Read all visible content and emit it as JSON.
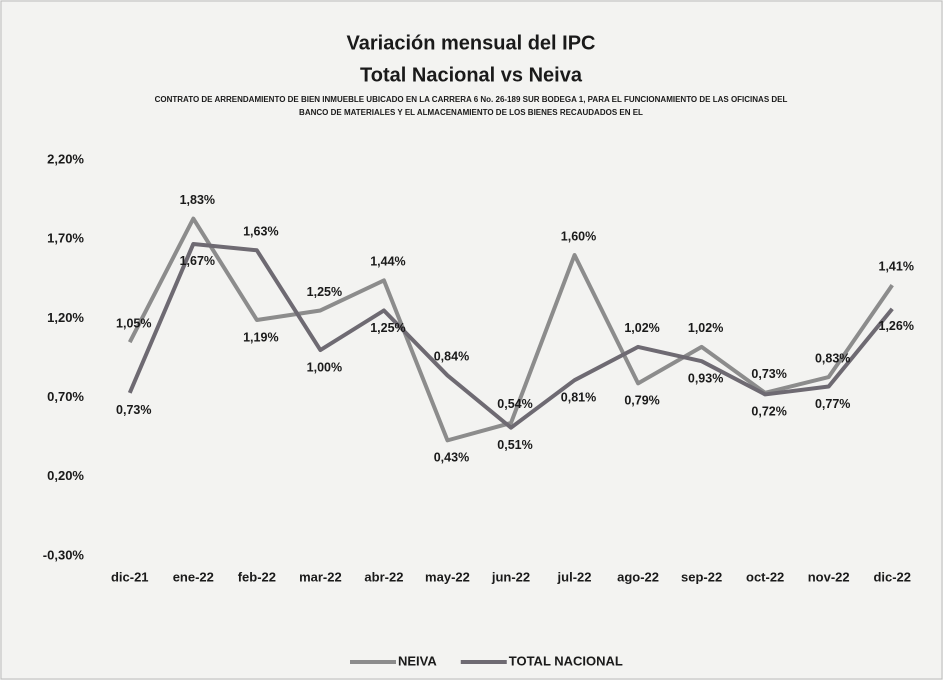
{
  "chart_data": {
    "type": "line",
    "title": "Variación mensual del IPC",
    "subtitle": "Total Nacional vs Neiva",
    "note": [
      "CONTRATO DE ARRENDAMIENTO DE BIEN INMUEBLE UBICADO EN LA CARRERA 6 No. 26-189 SUR BODEGA 1, PARA  EL FUNCIONAMIENTO DE LAS OFICINAS DEL",
      "BANCO DE MATERIALES Y EL  ALMACENAMIENTO DE LOS BIENES RECAUDADOS EN  EL"
    ],
    "categories": [
      "dic-21",
      "ene-22",
      "feb-22",
      "mar-22",
      "abr-22",
      "may-22",
      "jun-22",
      "jul-22",
      "ago-22",
      "sep-22",
      "oct-22",
      "nov-22",
      "dic-22"
    ],
    "series": [
      {
        "name": "NEIVA",
        "color": "#8c8c8c",
        "values": [
          1.05,
          1.83,
          1.19,
          1.25,
          1.44,
          0.43,
          0.54,
          1.6,
          0.79,
          1.02,
          0.73,
          0.83,
          1.41
        ],
        "value_labels": [
          "1,05%",
          "1,83%",
          "1,19%",
          "1,25%",
          "1,44%",
          "0,43%",
          "0,54%",
          "1,60%",
          "0,79%",
          "1,02%",
          "0,73%",
          "0,83%",
          "1,41%"
        ]
      },
      {
        "name": "TOTAL NACIONAL",
        "color": "#6e6a72",
        "values": [
          0.73,
          1.67,
          1.63,
          1.0,
          1.25,
          0.84,
          0.51,
          0.81,
          1.02,
          0.93,
          0.72,
          0.77,
          1.26
        ],
        "value_labels": [
          "0,73%",
          "1,67%",
          "1,63%",
          "1,00%",
          "1,25%",
          "0,84%",
          "0,51%",
          "0,81%",
          "1,02%",
          "0,93%",
          "0,72%",
          "0,77%",
          "1,26%"
        ]
      }
    ],
    "ylim": [
      -0.3,
      2.2
    ],
    "yticks": [
      {
        "value": -0.3,
        "label": "-0,30%"
      },
      {
        "value": 0.2,
        "label": "0,20%"
      },
      {
        "value": 0.7,
        "label": "0,70%"
      },
      {
        "value": 1.2,
        "label": "1,20%"
      },
      {
        "value": 1.7,
        "label": "1,70%"
      },
      {
        "value": 2.2,
        "label": "2,20%"
      }
    ],
    "grid": false,
    "legend": "bottom"
  }
}
